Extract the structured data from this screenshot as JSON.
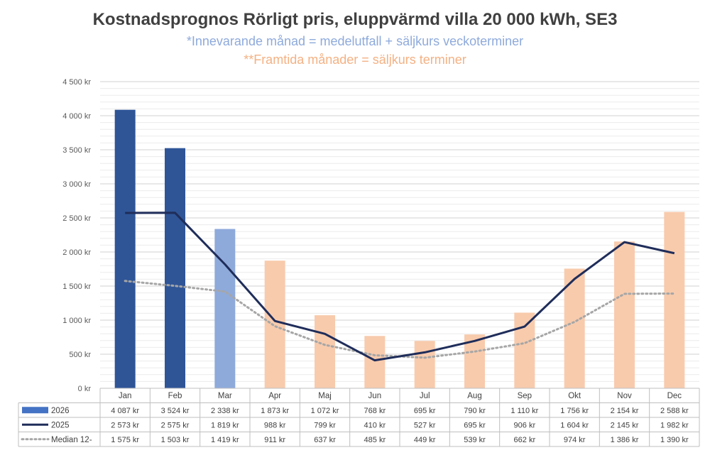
{
  "chart_data": {
    "type": "bar",
    "title": "Kostnadsprognos Rörligt pris, eluppvärmd villa 20 000 kWh, SE3",
    "subtitle_1": "*Innevarande  månad = medelutfall +  säljkurs veckoterminer",
    "subtitle_2": "**Framtida månader = säljkurs terminer",
    "categories": [
      "Jan",
      "Feb",
      "Mar",
      "Apr",
      "Maj",
      "Jun",
      "Jul",
      "Aug",
      "Sep",
      "Okt",
      "Nov",
      "Dec"
    ],
    "ylim": [
      0,
      4500
    ],
    "yticks": [
      0,
      500,
      1000,
      1500,
      2000,
      2500,
      3000,
      3500,
      4000,
      4500
    ],
    "ytick_labels": [
      "0 kr",
      "500 kr",
      "1 000 kr",
      "1 500 kr",
      "2 000 kr",
      "2 500 kr",
      "3 000 kr",
      "3 500 kr",
      "4 000 kr",
      "4 500 kr"
    ],
    "grid": true,
    "legend": "data-table",
    "bar_colors": [
      "#2f5597",
      "#2f5597",
      "#8eaadb",
      "#f8cbad",
      "#f8cbad",
      "#f8cbad",
      "#f8cbad",
      "#f8cbad",
      "#f8cbad",
      "#f8cbad",
      "#f8cbad",
      "#f8cbad"
    ],
    "series": [
      {
        "name": "2026",
        "type": "bar",
        "legend_color": "#4472c4",
        "values": [
          4087,
          3524,
          2338,
          1873,
          1072,
          768,
          695,
          790,
          1110,
          1756,
          2154,
          2588
        ],
        "labels": [
          "4 087 kr",
          "3 524 kr",
          "2 338 kr",
          "1 873 kr",
          "1 072 kr",
          "768 kr",
          "695 kr",
          "790 kr",
          "1 110 kr",
          "1 756 kr",
          "2 154 kr",
          "2 588 kr"
        ]
      },
      {
        "name": "2025",
        "type": "line",
        "color": "#1f2d5a",
        "values": [
          2573,
          2575,
          1819,
          988,
          799,
          410,
          527,
          695,
          906,
          1604,
          2145,
          1982
        ],
        "labels": [
          "2 573 kr",
          "2 575 kr",
          "1 819 kr",
          "988 kr",
          "799 kr",
          "410 kr",
          "527 kr",
          "695 kr",
          "906 kr",
          "1 604 kr",
          "2 145 kr",
          "1 982 kr"
        ]
      },
      {
        "name": "Median 12-",
        "type": "line-dotted",
        "color": "#a6a6a6",
        "values": [
          1575,
          1503,
          1419,
          911,
          637,
          485,
          449,
          539,
          662,
          974,
          1386,
          1390
        ],
        "labels": [
          "1 575 kr",
          "1 503 kr",
          "1 419 kr",
          "911 kr",
          "637 kr",
          "485 kr",
          "449 kr",
          "539 kr",
          "662 kr",
          "974 kr",
          "1 386 kr",
          "1 390 kr"
        ]
      }
    ]
  }
}
